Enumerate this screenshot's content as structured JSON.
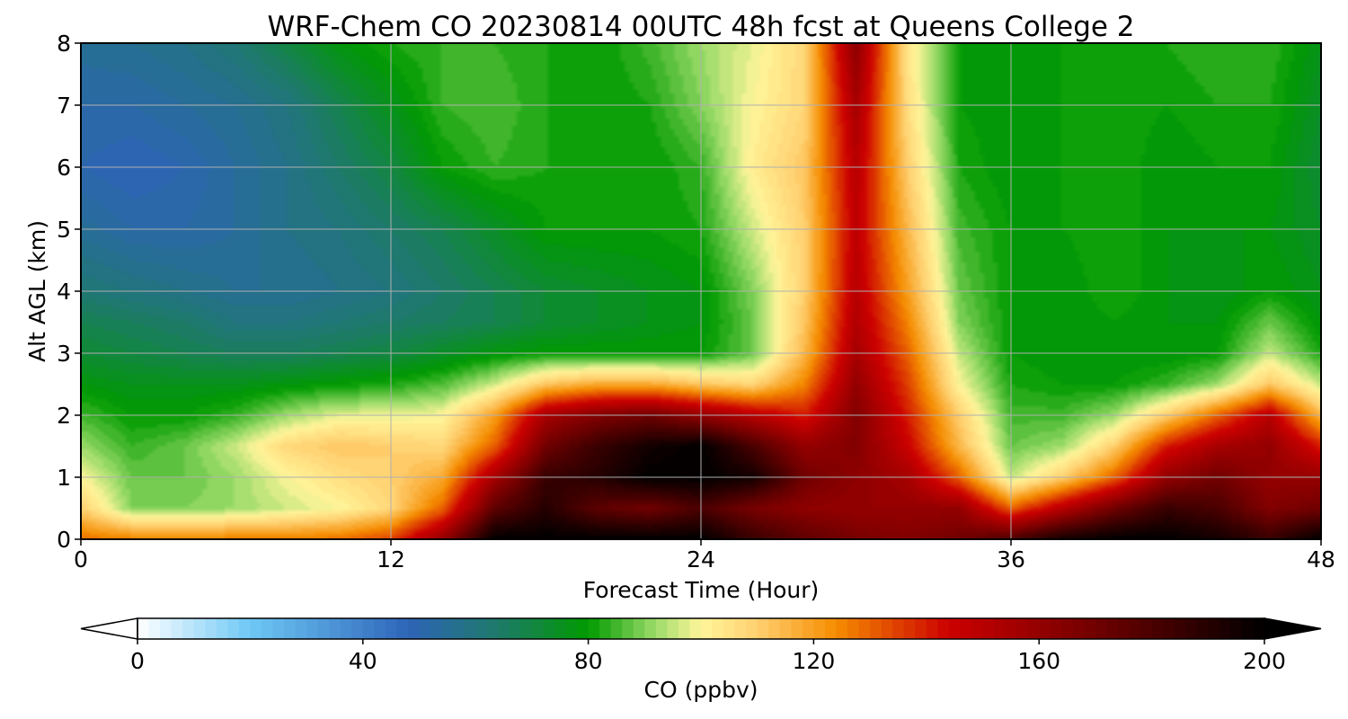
{
  "chart_data": {
    "type": "heatmap",
    "title": "WRF-Chem CO  20230814 00UTC 48h fcst at Queens College 2",
    "xlabel": "Forecast Time (Hour)",
    "ylabel": "Alt AGL (km)",
    "xlim": [
      0,
      48
    ],
    "ylim": [
      0,
      8
    ],
    "xticks": [
      0,
      12,
      24,
      36,
      48
    ],
    "yticks": [
      0,
      1,
      2,
      3,
      4,
      5,
      6,
      7,
      8
    ],
    "grid": true,
    "colorbar": {
      "label": "CO  (ppbv)",
      "orientation": "horizontal",
      "placement": "bottom",
      "range": [
        0,
        200
      ],
      "ticks": [
        0,
        40,
        80,
        120,
        160,
        200
      ],
      "extend": "both",
      "levels": 100,
      "color_stops": [
        {
          "v": 0,
          "color": "#ffffff"
        },
        {
          "v": 20,
          "color": "#6ec8f5"
        },
        {
          "v": 48,
          "color": "#2e64b8"
        },
        {
          "v": 64,
          "color": "#1e7a6a"
        },
        {
          "v": 80,
          "color": "#009a00"
        },
        {
          "v": 92,
          "color": "#9ddc6a"
        },
        {
          "v": 100,
          "color": "#fff59a"
        },
        {
          "v": 110,
          "color": "#ffd070"
        },
        {
          "v": 124,
          "color": "#f58c00"
        },
        {
          "v": 144,
          "color": "#cc0000"
        },
        {
          "v": 168,
          "color": "#780000"
        },
        {
          "v": 200,
          "color": "#000000"
        }
      ]
    },
    "field": {
      "units": "ppbv",
      "x": [
        0,
        2,
        4,
        6,
        8,
        10,
        12,
        14,
        16,
        18,
        20,
        22,
        24,
        26,
        28,
        30,
        32,
        34,
        36,
        38,
        40,
        42,
        44,
        46,
        48
      ],
      "y": [
        0,
        0.5,
        1,
        1.5,
        2,
        2.5,
        3,
        3.5,
        4,
        5,
        6,
        7,
        8
      ],
      "values": [
        [
          128,
          126,
          126,
          126,
          126,
          128,
          135,
          160,
          200,
          200,
          200,
          200,
          200,
          185,
          175,
          168,
          165,
          170,
          180,
          195,
          200,
          200,
          195,
          185,
          200
        ],
        [
          110,
          90,
          90,
          92,
          96,
          100,
          108,
          130,
          175,
          190,
          175,
          170,
          180,
          168,
          162,
          160,
          160,
          160,
          130,
          150,
          170,
          185,
          180,
          165,
          170
        ],
        [
          100,
          88,
          88,
          92,
          100,
          106,
          110,
          118,
          155,
          185,
          190,
          200,
          200,
          195,
          170,
          162,
          155,
          130,
          95,
          110,
          130,
          160,
          170,
          160,
          160
        ],
        [
          92,
          84,
          88,
          96,
          108,
          112,
          110,
          108,
          130,
          170,
          185,
          195,
          200,
          180,
          160,
          165,
          145,
          115,
          88,
          92,
          110,
          140,
          155,
          160,
          140
        ],
        [
          85,
          80,
          80,
          84,
          92,
          98,
          98,
          100,
          120,
          155,
          165,
          170,
          160,
          150,
          140,
          165,
          140,
          110,
          85,
          85,
          92,
          110,
          130,
          150,
          115
        ],
        [
          78,
          76,
          76,
          76,
          78,
          80,
          82,
          86,
          96,
          112,
          118,
          118,
          112,
          108,
          125,
          160,
          135,
          100,
          82,
          80,
          80,
          84,
          92,
          112,
          95
        ],
        [
          72,
          70,
          68,
          66,
          66,
          68,
          70,
          74,
          78,
          80,
          80,
          80,
          80,
          88,
          115,
          155,
          130,
          95,
          80,
          78,
          78,
          78,
          80,
          95,
          82
        ],
        [
          68,
          66,
          64,
          60,
          60,
          62,
          64,
          66,
          68,
          72,
          74,
          76,
          78,
          88,
          112,
          152,
          125,
          90,
          80,
          78,
          80,
          78,
          78,
          88,
          78
        ],
        [
          62,
          60,
          58,
          56,
          56,
          58,
          60,
          64,
          68,
          72,
          74,
          76,
          78,
          90,
          110,
          150,
          120,
          88,
          80,
          78,
          82,
          78,
          76,
          80,
          76
        ],
        [
          55,
          52,
          52,
          54,
          58,
          60,
          64,
          68,
          74,
          80,
          80,
          80,
          82,
          96,
          110,
          148,
          115,
          85,
          80,
          80,
          82,
          78,
          78,
          78,
          74
        ],
        [
          50,
          48,
          50,
          54,
          58,
          64,
          70,
          80,
          84,
          82,
          80,
          80,
          84,
          102,
          112,
          150,
          110,
          82,
          78,
          80,
          82,
          78,
          80,
          80,
          72
        ],
        [
          52,
          52,
          54,
          56,
          60,
          68,
          76,
          84,
          86,
          82,
          80,
          82,
          90,
          100,
          108,
          155,
          106,
          80,
          78,
          80,
          82,
          80,
          82,
          82,
          74
        ],
        [
          55,
          56,
          58,
          62,
          70,
          78,
          82,
          84,
          84,
          82,
          80,
          85,
          92,
          98,
          108,
          162,
          104,
          80,
          78,
          80,
          80,
          82,
          84,
          84,
          76
        ]
      ]
    }
  }
}
